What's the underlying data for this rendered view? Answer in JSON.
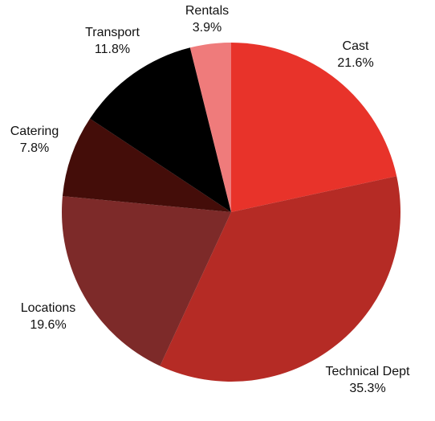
{
  "chart_data": {
    "type": "pie",
    "title": "",
    "slices": [
      {
        "label": "Cast",
        "value": 21.6,
        "value_text": "21.6%",
        "color": "#e8332a"
      },
      {
        "label": "Technical Dept",
        "value": 35.3,
        "value_text": "35.3%",
        "color": "#b52b25"
      },
      {
        "label": "Locations",
        "value": 19.6,
        "value_text": "19.6%",
        "color": "#7d2a29"
      },
      {
        "label": "Catering",
        "value": 7.8,
        "value_text": "7.8%",
        "color": "#440d09"
      },
      {
        "label": "Transport",
        "value": 11.8,
        "value_text": "11.8%",
        "color": "#000000"
      },
      {
        "label": "Rentals",
        "value": 3.9,
        "value_text": "3.9%",
        "color": "#ef7b7b"
      }
    ],
    "start_angle": "12 o'clock",
    "direction": "clockwise",
    "legend": "none"
  }
}
